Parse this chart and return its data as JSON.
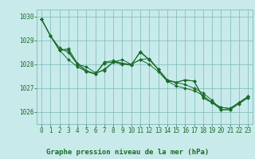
{
  "title": "Graphe pression niveau de la mer (hPa)",
  "background_color": "#c8eaea",
  "grid_color": "#7ab8b8",
  "line_color": "#1a6b2a",
  "marker_color": "#1a6b2a",
  "xlim": [
    -0.5,
    23.5
  ],
  "ylim": [
    1025.5,
    1030.3
  ],
  "yticks": [
    1026,
    1027,
    1028,
    1029,
    1030
  ],
  "xticks": [
    0,
    1,
    2,
    3,
    4,
    5,
    6,
    7,
    8,
    9,
    10,
    11,
    12,
    13,
    14,
    15,
    16,
    17,
    18,
    19,
    20,
    21,
    22,
    23
  ],
  "series": [
    [
      1029.9,
      1029.2,
      1028.6,
      1028.2,
      1027.9,
      1027.7,
      1027.6,
      1027.8,
      1028.1,
      1028.2,
      1028.0,
      1028.2,
      1028.0,
      1027.7,
      1027.3,
      1027.1,
      1027.0,
      1026.9,
      1026.7,
      1026.4,
      1026.1,
      1026.1,
      1026.4,
      1026.6
    ],
    [
      1029.9,
      1029.2,
      1028.7,
      1028.5,
      1028.0,
      1027.9,
      1027.65,
      1027.75,
      1028.1,
      1028.0,
      1028.0,
      1028.2,
      1028.25,
      1027.8,
      1027.35,
      1027.25,
      1027.15,
      1027.0,
      1026.8,
      1026.5,
      1026.1,
      1026.1,
      1026.35,
      1026.6
    ],
    [
      1029.9,
      1029.2,
      1028.6,
      1028.65,
      1028.05,
      1027.75,
      1027.6,
      1028.1,
      1028.15,
      1028.05,
      1027.95,
      1028.55,
      1028.2,
      1027.8,
      1027.3,
      1027.25,
      1027.35,
      1027.3,
      1026.6,
      1026.4,
      1026.2,
      1026.15,
      1026.4,
      1026.65
    ],
    [
      1029.9,
      1029.2,
      1028.6,
      1028.6,
      1028.0,
      1027.7,
      1027.6,
      1028.05,
      1028.1,
      1028.05,
      1028.0,
      1028.5,
      1028.2,
      1027.8,
      1027.35,
      1027.25,
      1027.35,
      1027.3,
      1026.6,
      1026.4,
      1026.2,
      1026.15,
      1026.4,
      1026.65
    ]
  ],
  "title_fontsize": 6.5,
  "tick_fontsize": 5.5
}
